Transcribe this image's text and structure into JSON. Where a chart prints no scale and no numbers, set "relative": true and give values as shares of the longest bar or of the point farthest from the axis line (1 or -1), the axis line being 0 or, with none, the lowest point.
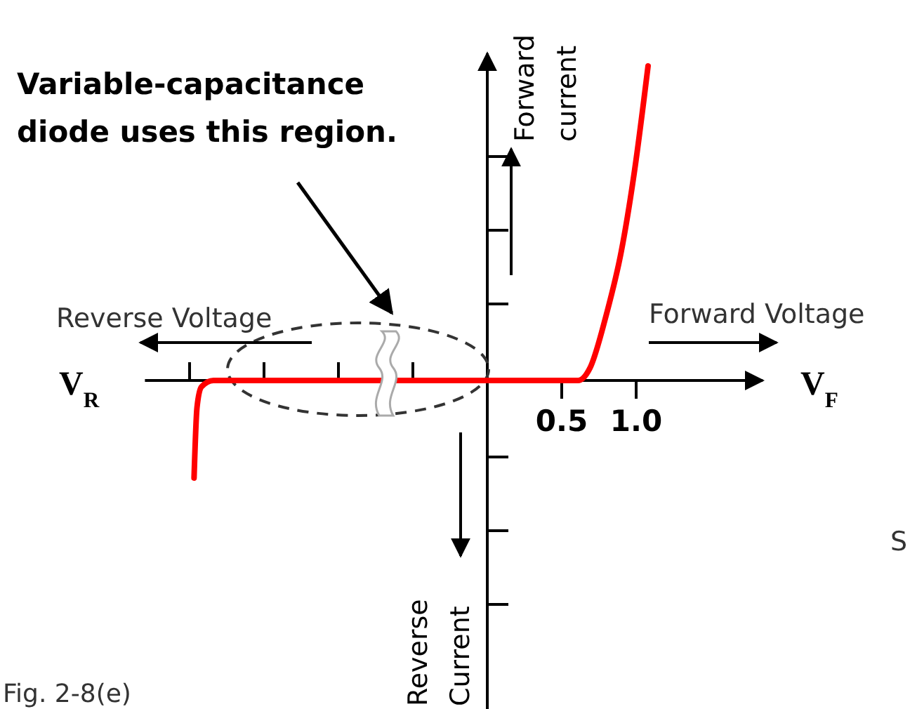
{
  "chart_data": {
    "type": "line",
    "relative": true,
    "x": [
      -1.97,
      -1.95,
      -1.92,
      -1.84,
      0,
      0.61,
      0.69,
      0.8,
      0.9,
      0.99,
      1.08
    ],
    "series": [
      {
        "color": "#ff0000",
        "values": [
          -0.31,
          -0.085,
          -0.02,
          0,
          0,
          0,
          0.04,
          0.21,
          0.41,
          0.67,
          1.0
        ]
      }
    ],
    "xlim": [
      -2.3,
      1.85
    ],
    "xticks": [
      {
        "value": -2.0,
        "label": null
      },
      {
        "value": -1.5,
        "label": null
      },
      {
        "value": -1.0,
        "label": null
      },
      {
        "value": -0.5,
        "label": null
      },
      {
        "value": 0.5,
        "label": "0.5"
      },
      {
        "value": 1.0,
        "label": "1.0"
      }
    ],
    "xlabel": "Forward Voltage",
    "annotations": [
      "Variable-capacitance diode uses this region.",
      "Reverse Voltage",
      "Forward current",
      "Reverse Current",
      "V$_{R}$",
      "V$_{F}$",
      "Fig. 2-8(e)",
      "S"
    ],
    "marker": "none",
    "line_style": "solid"
  }
}
